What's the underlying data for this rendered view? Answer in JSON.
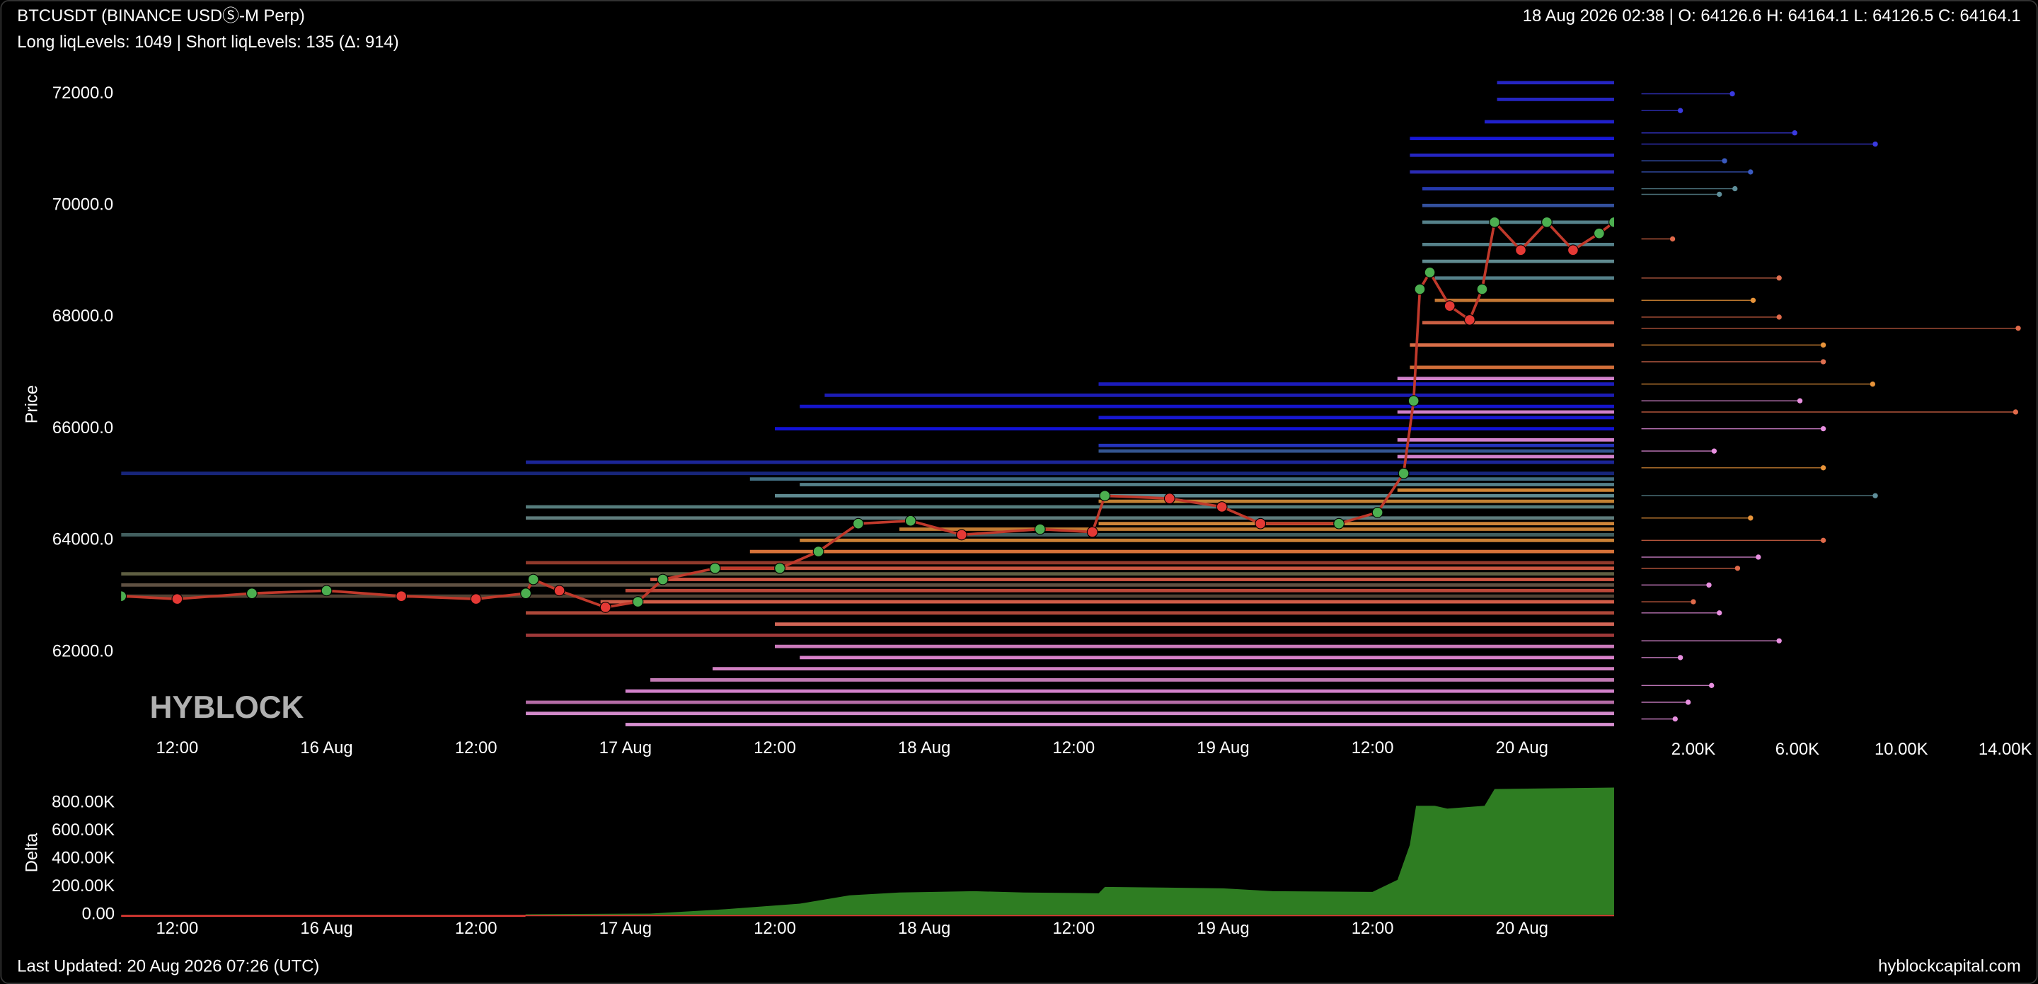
{
  "chart_data": [
    {
      "type": "line",
      "title": "BTCUSDT (BINANCE USDⓈ-M Perp)",
      "subtitle": "Long liqLevels: 1049 | Short liqLevels: 135 (Δ: 914)",
      "info": "18 Aug 2026 02:38 | O: 64126.6 H: 64164.1 L: 64126.5 C: 64164.1",
      "watermark": "HYBLOCK",
      "ylabel": "Price",
      "xlim": [
        7.5,
        127.4
      ],
      "ylim": [
        60500,
        72400
      ],
      "xticks": [
        {
          "value": 12,
          "label": "12:00"
        },
        {
          "value": 24,
          "label": "16 Aug"
        },
        {
          "value": 36,
          "label": "12:00"
        },
        {
          "value": 48,
          "label": "17 Aug"
        },
        {
          "value": 60,
          "label": "12:00"
        },
        {
          "value": 72,
          "label": "18 Aug"
        },
        {
          "value": 84,
          "label": "12:00"
        },
        {
          "value": 96,
          "label": "19 Aug"
        },
        {
          "value": 108,
          "label": "12:00"
        },
        {
          "value": 120,
          "label": "20 Aug"
        }
      ],
      "yticks": [
        {
          "value": 62000,
          "label": "62000.0"
        },
        {
          "value": 64000,
          "label": "64000.0"
        },
        {
          "value": 66000,
          "label": "66000.0"
        },
        {
          "value": 68000,
          "label": "68000.0"
        },
        {
          "value": 70000,
          "label": "70000.0"
        },
        {
          "value": 72000,
          "label": "72000.0"
        }
      ],
      "color": "#c0392b",
      "up_color": "#4caf50",
      "down_color": "#e53935",
      "x": [
        7.5,
        12,
        18,
        24,
        30,
        36,
        40,
        40.6,
        42.7,
        46.4,
        49,
        51,
        55.2,
        60.4,
        63.5,
        66.7,
        70.9,
        75,
        81.3,
        85.5,
        86.5,
        91.7,
        95.9,
        99,
        105.3,
        108.4,
        110.5,
        111.3,
        111.8,
        112.6,
        114.2,
        115.8,
        116.8,
        117.8,
        119.9,
        122,
        124.1,
        126.2,
        127.4
      ],
      "values": [
        63000,
        62950,
        63050,
        63100,
        63000,
        62950,
        63050,
        63300,
        63100,
        62800,
        62900,
        63300,
        63500,
        63500,
        63800,
        64300,
        64350,
        64100,
        64200,
        64150,
        64800,
        64750,
        64600,
        64300,
        64300,
        64500,
        65200,
        66500,
        68500,
        68800,
        68200,
        67950,
        68500,
        69700,
        69200,
        69700,
        69200,
        69500,
        69700
      ],
      "levels": [
        {
          "price": 72200,
          "start": 118,
          "color": "#2a2ad8"
        },
        {
          "price": 71900,
          "start": 118,
          "color": "#2a2ad8"
        },
        {
          "price": 71500,
          "start": 117,
          "color": "#2424e0"
        },
        {
          "price": 71200,
          "start": 111,
          "color": "#1a1af0"
        },
        {
          "price": 70900,
          "start": 111,
          "color": "#2a2ad8"
        },
        {
          "price": 70600,
          "start": 111,
          "color": "#3030c8"
        },
        {
          "price": 70300,
          "start": 112,
          "color": "#2a40c0"
        },
        {
          "price": 70000,
          "start": 112,
          "color": "#3a5ab0"
        },
        {
          "price": 69700,
          "start": 112,
          "color": "#5f8f9a"
        },
        {
          "price": 69300,
          "start": 112,
          "color": "#5f8f9a"
        },
        {
          "price": 69000,
          "start": 112,
          "color": "#6a9aa0"
        },
        {
          "price": 68700,
          "start": 113,
          "color": "#5f8f9a"
        },
        {
          "price": 68300,
          "start": 113,
          "color": "#d9843a"
        },
        {
          "price": 67900,
          "start": 112,
          "color": "#e06a4a"
        },
        {
          "price": 67500,
          "start": 111,
          "color": "#f07a50"
        },
        {
          "price": 67100,
          "start": 111,
          "color": "#e87a40"
        },
        {
          "price": 66900,
          "start": 110,
          "color": "#e890e0"
        },
        {
          "price": 66300,
          "start": 110,
          "color": "#e890e0"
        },
        {
          "price": 65800,
          "start": 110,
          "color": "#e890e0"
        },
        {
          "price": 65500,
          "start": 110,
          "color": "#e890e0"
        },
        {
          "price": 66800,
          "start": 86,
          "color": "#1f1fd0"
        },
        {
          "price": 66600,
          "start": 64,
          "color": "#2020c8"
        },
        {
          "price": 66400,
          "start": 62,
          "color": "#1818e0"
        },
        {
          "price": 66200,
          "start": 86,
          "color": "#1a1ae8"
        },
        {
          "price": 66000,
          "start": 60,
          "color": "#1515f0"
        },
        {
          "price": 65700,
          "start": 86,
          "color": "#2a3ad0"
        },
        {
          "price": 65400,
          "start": 40,
          "color": "#1e2aa8"
        },
        {
          "price": 65200,
          "start": 7.5,
          "color": "#1a2a88"
        },
        {
          "price": 65600,
          "start": 86,
          "color": "#3a60a0"
        },
        {
          "price": 65100,
          "start": 58,
          "color": "#4a7a90"
        },
        {
          "price": 65000,
          "start": 62,
          "color": "#5f8f9a"
        },
        {
          "price": 64800,
          "start": 60,
          "color": "#6a9aa0"
        },
        {
          "price": 64600,
          "start": 40,
          "color": "#5f8a8a"
        },
        {
          "price": 64400,
          "start": 40,
          "color": "#6a8a8a"
        },
        {
          "price": 64100,
          "start": 7.5,
          "color": "#4a6a6a"
        },
        {
          "price": 64900,
          "start": 110,
          "color": "#e8943a"
        },
        {
          "price": 64700,
          "start": 86,
          "color": "#d8903a"
        },
        {
          "price": 64300,
          "start": 86,
          "color": "#e59440"
        },
        {
          "price": 64200,
          "start": 70,
          "color": "#d88a38"
        },
        {
          "price": 64000,
          "start": 62,
          "color": "#e0903c"
        },
        {
          "price": 63800,
          "start": 58,
          "color": "#f08040"
        },
        {
          "price": 63600,
          "start": 40,
          "color": "#a04030"
        },
        {
          "price": 63400,
          "start": 7.5,
          "color": "#6a6a4a"
        },
        {
          "price": 63500,
          "start": 55,
          "color": "#e06048"
        },
        {
          "price": 63300,
          "start": 50,
          "color": "#e8604a"
        },
        {
          "price": 63100,
          "start": 48,
          "color": "#d05040"
        },
        {
          "price": 62900,
          "start": 46,
          "color": "#e86850"
        },
        {
          "price": 62700,
          "start": 40,
          "color": "#c05040"
        },
        {
          "price": 62500,
          "start": 60,
          "color": "#e87060"
        },
        {
          "price": 62300,
          "start": 40,
          "color": "#b04040"
        },
        {
          "price": 63200,
          "start": 7.5,
          "color": "#6a5a4a"
        },
        {
          "price": 63000,
          "start": 7.5,
          "color": "#5a4a3a"
        },
        {
          "price": 62100,
          "start": 60,
          "color": "#e088d0"
        },
        {
          "price": 61900,
          "start": 62,
          "color": "#f090e0"
        },
        {
          "price": 61700,
          "start": 55,
          "color": "#e890d8"
        },
        {
          "price": 61500,
          "start": 50,
          "color": "#d888c8"
        },
        {
          "price": 61300,
          "start": 48,
          "color": "#e890e0"
        },
        {
          "price": 61100,
          "start": 40,
          "color": "#c878b8"
        },
        {
          "price": 60900,
          "start": 40,
          "color": "#e898e0"
        },
        {
          "price": 60700,
          "start": 48,
          "color": "#f0a0e8"
        }
      ]
    },
    {
      "type": "lollipop",
      "xlim": [
        0,
        14600
      ],
      "ylim": [
        60500,
        72400
      ],
      "xticks": [
        {
          "value": 2000,
          "label": "2.00K"
        },
        {
          "value": 6000,
          "label": "6.00K"
        },
        {
          "value": 10000,
          "label": "10.00K"
        },
        {
          "value": 14000,
          "label": "14.00K"
        }
      ],
      "points": [
        {
          "price": 72000,
          "size": 3500,
          "color": "#3a3ae0"
        },
        {
          "price": 71700,
          "size": 1500,
          "color": "#3a3ae0"
        },
        {
          "price": 71300,
          "size": 5900,
          "color": "#3a3ae0"
        },
        {
          "price": 71100,
          "size": 9000,
          "color": "#3a3ae0"
        },
        {
          "price": 70800,
          "size": 3200,
          "color": "#3a5ac0"
        },
        {
          "price": 70600,
          "size": 4200,
          "color": "#3a5ac0"
        },
        {
          "price": 70300,
          "size": 3600,
          "color": "#5f8f9a"
        },
        {
          "price": 70200,
          "size": 3000,
          "color": "#5f8f9a"
        },
        {
          "price": 69400,
          "size": 1200,
          "color": "#e06a4a"
        },
        {
          "price": 68700,
          "size": 5300,
          "color": "#e07050"
        },
        {
          "price": 68300,
          "size": 4300,
          "color": "#e8943a"
        },
        {
          "price": 68000,
          "size": 5300,
          "color": "#e06a4a"
        },
        {
          "price": 67800,
          "size": 14500,
          "color": "#e06a4a"
        },
        {
          "price": 67500,
          "size": 7000,
          "color": "#e8943a"
        },
        {
          "price": 67200,
          "size": 7000,
          "color": "#e07050"
        },
        {
          "price": 66800,
          "size": 8900,
          "color": "#e8943a"
        },
        {
          "price": 66500,
          "size": 6100,
          "color": "#e890e0"
        },
        {
          "price": 66300,
          "size": 14400,
          "color": "#e06a4a"
        },
        {
          "price": 66000,
          "size": 7000,
          "color": "#e890e0"
        },
        {
          "price": 65600,
          "size": 2800,
          "color": "#e890e0"
        },
        {
          "price": 65300,
          "size": 7000,
          "color": "#e8943a"
        },
        {
          "price": 64800,
          "size": 9000,
          "color": "#5f8f9a"
        },
        {
          "price": 64400,
          "size": 4200,
          "color": "#e8943a"
        },
        {
          "price": 64000,
          "size": 7000,
          "color": "#e06a4a"
        },
        {
          "price": 63700,
          "size": 4500,
          "color": "#e890e0"
        },
        {
          "price": 63500,
          "size": 3700,
          "color": "#e06a4a"
        },
        {
          "price": 63200,
          "size": 2600,
          "color": "#e890e0"
        },
        {
          "price": 62900,
          "size": 2000,
          "color": "#e06a4a"
        },
        {
          "price": 62700,
          "size": 3000,
          "color": "#e890e0"
        },
        {
          "price": 62200,
          "size": 5300,
          "color": "#e890e0"
        },
        {
          "price": 61900,
          "size": 1500,
          "color": "#e890e0"
        },
        {
          "price": 61400,
          "size": 2700,
          "color": "#e890e0"
        },
        {
          "price": 61100,
          "size": 1800,
          "color": "#e890e0"
        },
        {
          "price": 60800,
          "size": 1300,
          "color": "#e890e0"
        }
      ]
    },
    {
      "type": "area",
      "ylabel": "Delta",
      "color": "#2e7d22",
      "negative_color": "#e53935",
      "xlim": [
        7.5,
        127.4
      ],
      "ylim": [
        -20000,
        900000
      ],
      "xticks": [
        {
          "value": 12,
          "label": "12:00"
        },
        {
          "value": 24,
          "label": "16 Aug"
        },
        {
          "value": 36,
          "label": "12:00"
        },
        {
          "value": 48,
          "label": "17 Aug"
        },
        {
          "value": 60,
          "label": "12:00"
        },
        {
          "value": 72,
          "label": "18 Aug"
        },
        {
          "value": 84,
          "label": "12:00"
        },
        {
          "value": 96,
          "label": "19 Aug"
        },
        {
          "value": 108,
          "label": "12:00"
        },
        {
          "value": 120,
          "label": "20 Aug"
        }
      ],
      "yticks": [
        {
          "value": 0,
          "label": "0.00"
        },
        {
          "value": 200000,
          "label": "200.00K"
        },
        {
          "value": 400000,
          "label": "400.00K"
        },
        {
          "value": 600000,
          "label": "600.00K"
        },
        {
          "value": 800000,
          "label": "800.00K"
        }
      ],
      "x": [
        7.5,
        39.9,
        40,
        50,
        56,
        62,
        66,
        70,
        76,
        80,
        86,
        86.5,
        96,
        100,
        108,
        110,
        111,
        111.5,
        113,
        114,
        117,
        117.8,
        127.4
      ],
      "values": [
        -4000,
        -4000,
        5000,
        10000,
        40000,
        80000,
        140000,
        160000,
        170000,
        160000,
        155000,
        200000,
        190000,
        170000,
        165000,
        250000,
        500000,
        780000,
        780000,
        760000,
        780000,
        900000,
        910000
      ]
    }
  ],
  "footer": {
    "updated": "Last Updated: 20 Aug 2026 07:26 (UTC)",
    "site": "hyblockcapital.com"
  }
}
